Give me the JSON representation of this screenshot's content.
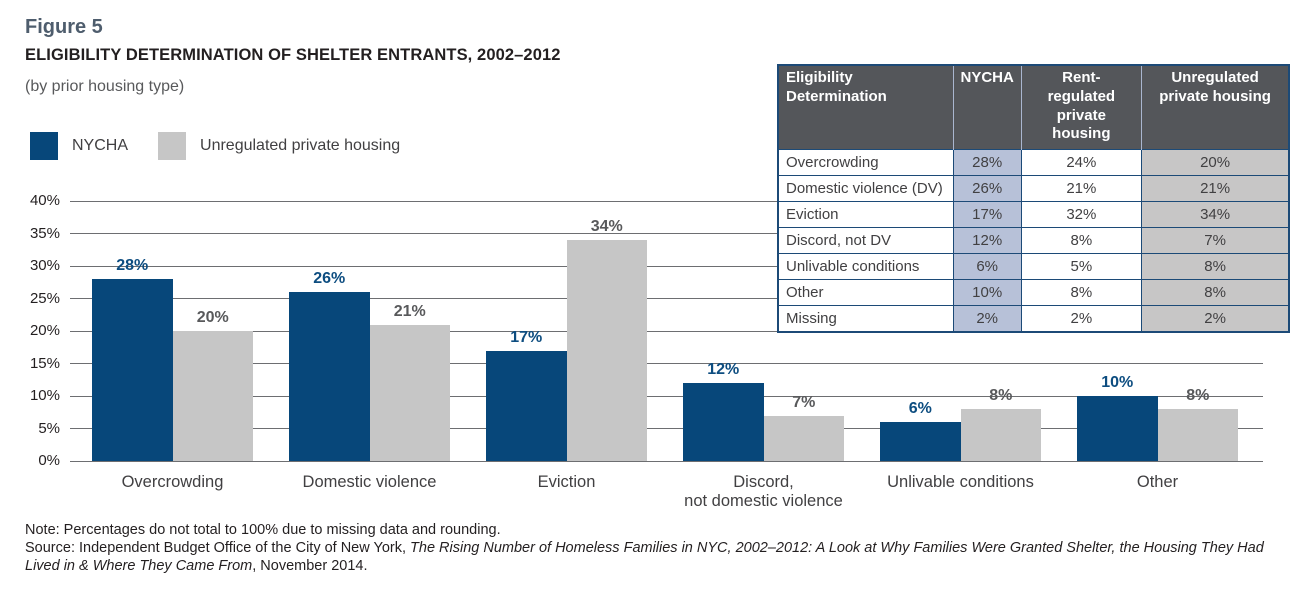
{
  "figure": {
    "label": "Figure 5",
    "title": "ELIGIBILITY DETERMINATION OF SHELTER ENTRANTS, 2002–2012",
    "subtitle": "(by prior housing type)"
  },
  "legend": {
    "items": [
      {
        "label": "NYCHA",
        "color": "#07477a"
      },
      {
        "label": "Unregulated private housing",
        "color": "#c6c6c6"
      }
    ]
  },
  "chart_data": {
    "type": "bar",
    "categories": [
      "Overcrowding",
      "Domestic violence",
      "Eviction",
      "Discord,\nnot domestic violence",
      "Unlivable conditions",
      "Other"
    ],
    "series": [
      {
        "name": "NYCHA",
        "color": "#07477a",
        "label_color": "#0d4d80",
        "values": [
          28,
          26,
          17,
          12,
          6,
          10
        ]
      },
      {
        "name": "Unregulated private housing",
        "color": "#c6c6c6",
        "label_color": "#58595b",
        "values": [
          20,
          21,
          34,
          7,
          8,
          8
        ]
      }
    ],
    "value_suffix": "%",
    "ylim": [
      0,
      40
    ],
    "ytick_step": 5,
    "ytick_labels": [
      "0%",
      "5%",
      "10%",
      "15%",
      "20%",
      "25%",
      "30%",
      "35%",
      "40%"
    ],
    "grid": true,
    "legend_position": "top-left",
    "title": "ELIGIBILITY DETERMINATION OF SHELTER ENTRANTS, 2002–2012",
    "xlabel": "",
    "ylabel": ""
  },
  "table": {
    "header": [
      "Eligibility\nDetermination",
      "NYCHA",
      "Rent-regulated\nprivate housing",
      "Unregulated\nprivate housing"
    ],
    "column_bg": [
      "#ffffff",
      "#b7c1d8",
      "#ffffff",
      "#c7c6c6"
    ],
    "rows": [
      [
        "Overcrowding",
        "28%",
        "24%",
        "20%"
      ],
      [
        "Domestic violence (DV)",
        "26%",
        "21%",
        "21%"
      ],
      [
        "Eviction",
        "17%",
        "32%",
        "34%"
      ],
      [
        "Discord, not DV",
        "12%",
        "8%",
        "7%"
      ],
      [
        "Unlivable conditions",
        "6%",
        "5%",
        "8%"
      ],
      [
        "Other",
        "10%",
        "8%",
        "8%"
      ],
      [
        "Missing",
        "2%",
        "2%",
        "2%"
      ]
    ]
  },
  "notes": {
    "note": "Note: Percentages do not total to 100% due to missing data and rounding.",
    "source_prefix": "Source: Independent Budget Office of the City of New York, ",
    "source_italic": "The Rising Number of Homeless Families in NYC, 2002–2012: A Look at Why Families Were Granted Shelter, the Housing They Had Lived in & Where They Came From",
    "source_suffix": ", November 2014."
  },
  "colors": {
    "nycha_bar": "#07477a",
    "unregulated_bar": "#c6c6c6",
    "nycha_label": "#0d4d80",
    "unregulated_label": "#58595b",
    "gridline": "#6d6e71",
    "table_header_bg": "#54565a",
    "table_border": "#1c4a77",
    "nycha_column_bg": "#b7c1d8",
    "unregulated_column_bg": "#c7c6c6",
    "figure_label": "#4e5d6d"
  }
}
